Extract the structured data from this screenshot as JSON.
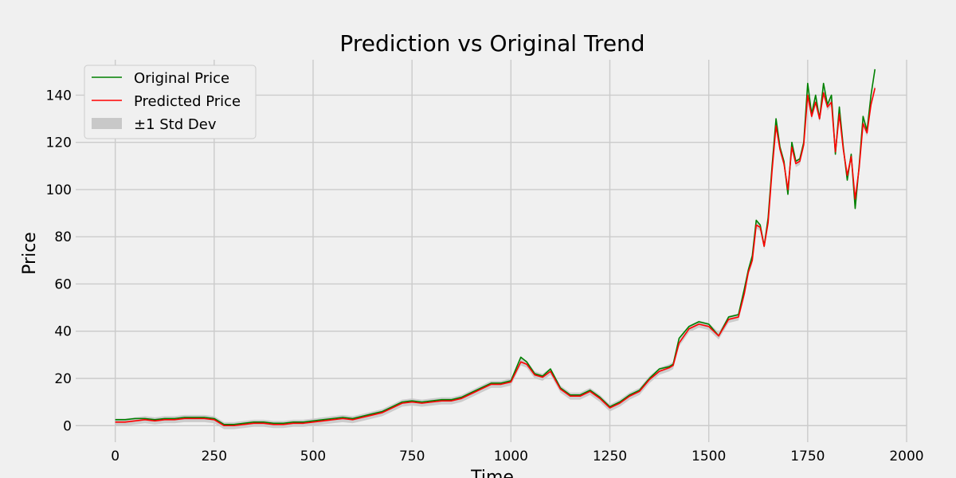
{
  "chart_data": {
    "type": "line",
    "title": "Prediction vs Original Trend",
    "xlabel": "Time",
    "ylabel": "Price",
    "xlim": [
      -100,
      2000
    ],
    "ylim": [
      -7,
      155
    ],
    "xticks": [
      0,
      250,
      500,
      750,
      1000,
      1250,
      1500,
      1750,
      2000
    ],
    "yticks": [
      0,
      20,
      40,
      60,
      80,
      100,
      120,
      140
    ],
    "grid": true,
    "legend_position": "top-left",
    "series": [
      {
        "name": "Original Price",
        "color": "#008000",
        "x": [
          0,
          25,
          50,
          75,
          100,
          125,
          150,
          175,
          200,
          225,
          250,
          275,
          300,
          325,
          350,
          375,
          400,
          425,
          450,
          475,
          500,
          525,
          550,
          575,
          600,
          625,
          650,
          675,
          700,
          725,
          750,
          775,
          800,
          825,
          850,
          875,
          900,
          925,
          950,
          975,
          1000,
          1025,
          1040,
          1060,
          1080,
          1100,
          1125,
          1150,
          1175,
          1200,
          1225,
          1250,
          1275,
          1300,
          1325,
          1350,
          1375,
          1400,
          1410,
          1425,
          1450,
          1475,
          1500,
          1525,
          1550,
          1575,
          1590,
          1600,
          1610,
          1620,
          1630,
          1640,
          1650,
          1660,
          1670,
          1680,
          1690,
          1700,
          1710,
          1720,
          1730,
          1740,
          1750,
          1760,
          1770,
          1780,
          1790,
          1800,
          1810,
          1820,
          1830,
          1840,
          1850,
          1860,
          1870,
          1880,
          1890,
          1900,
          1910,
          1920
        ],
        "values": [
          2.5,
          2.5,
          3,
          3,
          2.5,
          3,
          3,
          3.5,
          3.5,
          3.5,
          3,
          0.5,
          0.5,
          1,
          1.5,
          1.5,
          1,
          1,
          1.5,
          1.5,
          2,
          2.5,
          3,
          3.5,
          3,
          4,
          5,
          6,
          8,
          10,
          10.5,
          10,
          10.5,
          11,
          11,
          12,
          14,
          16,
          18,
          18,
          19,
          29,
          27,
          22,
          21,
          24,
          16,
          13,
          13,
          15,
          12,
          8,
          10,
          13,
          15,
          20,
          24,
          25,
          26,
          37,
          42,
          44,
          43,
          38,
          46,
          47,
          58,
          66,
          72,
          87,
          85,
          76,
          88,
          110,
          130,
          118,
          112,
          98,
          120,
          112,
          113,
          120,
          145,
          132,
          140,
          130,
          145,
          136,
          140,
          115,
          135,
          118,
          104,
          115,
          92,
          110,
          131,
          125,
          140,
          151
        ]
      },
      {
        "name": "Predicted Price",
        "color": "#ff0000",
        "x": [
          0,
          25,
          50,
          75,
          100,
          125,
          150,
          175,
          200,
          225,
          250,
          275,
          300,
          325,
          350,
          375,
          400,
          425,
          450,
          475,
          500,
          525,
          550,
          575,
          600,
          625,
          650,
          675,
          700,
          725,
          750,
          775,
          800,
          825,
          850,
          875,
          900,
          925,
          950,
          975,
          1000,
          1025,
          1040,
          1060,
          1080,
          1100,
          1125,
          1150,
          1175,
          1200,
          1225,
          1250,
          1275,
          1300,
          1325,
          1350,
          1375,
          1400,
          1410,
          1425,
          1450,
          1475,
          1500,
          1525,
          1550,
          1575,
          1590,
          1600,
          1610,
          1620,
          1630,
          1640,
          1650,
          1660,
          1670,
          1680,
          1690,
          1700,
          1710,
          1720,
          1730,
          1740,
          1750,
          1760,
          1770,
          1780,
          1790,
          1800,
          1810,
          1820,
          1830,
          1840,
          1850,
          1860,
          1870,
          1880,
          1890,
          1900,
          1910,
          1920
        ],
        "values": [
          1.5,
          1.5,
          2,
          2.5,
          2,
          2.5,
          2.5,
          3,
          3,
          3,
          2.5,
          0,
          0,
          0.5,
          1,
          1,
          0.5,
          0.5,
          1,
          1,
          1.5,
          2,
          2.5,
          3,
          2.5,
          3.5,
          4.5,
          5.5,
          7.5,
          9.5,
          10,
          9.5,
          10,
          10.5,
          10.5,
          11.5,
          13.5,
          15.5,
          17.5,
          17.5,
          18.5,
          27,
          26,
          21.5,
          20.5,
          23,
          15.5,
          12.5,
          12.5,
          14.5,
          11.5,
          7.5,
          9.5,
          12.5,
          14.5,
          19.5,
          23,
          24.5,
          25.5,
          35,
          41,
          43,
          42,
          38,
          45,
          46,
          56,
          65,
          70,
          85,
          84,
          76,
          86,
          108,
          127,
          117,
          111,
          100,
          118,
          111,
          112,
          119,
          140,
          131,
          137,
          130,
          141,
          135,
          137,
          116,
          132,
          117,
          106,
          114,
          96,
          109,
          128,
          124,
          136,
          143
        ]
      }
    ],
    "band": {
      "name": "±1 Std Dev",
      "color": "#c8c8c8",
      "half_width": 1.5
    }
  }
}
